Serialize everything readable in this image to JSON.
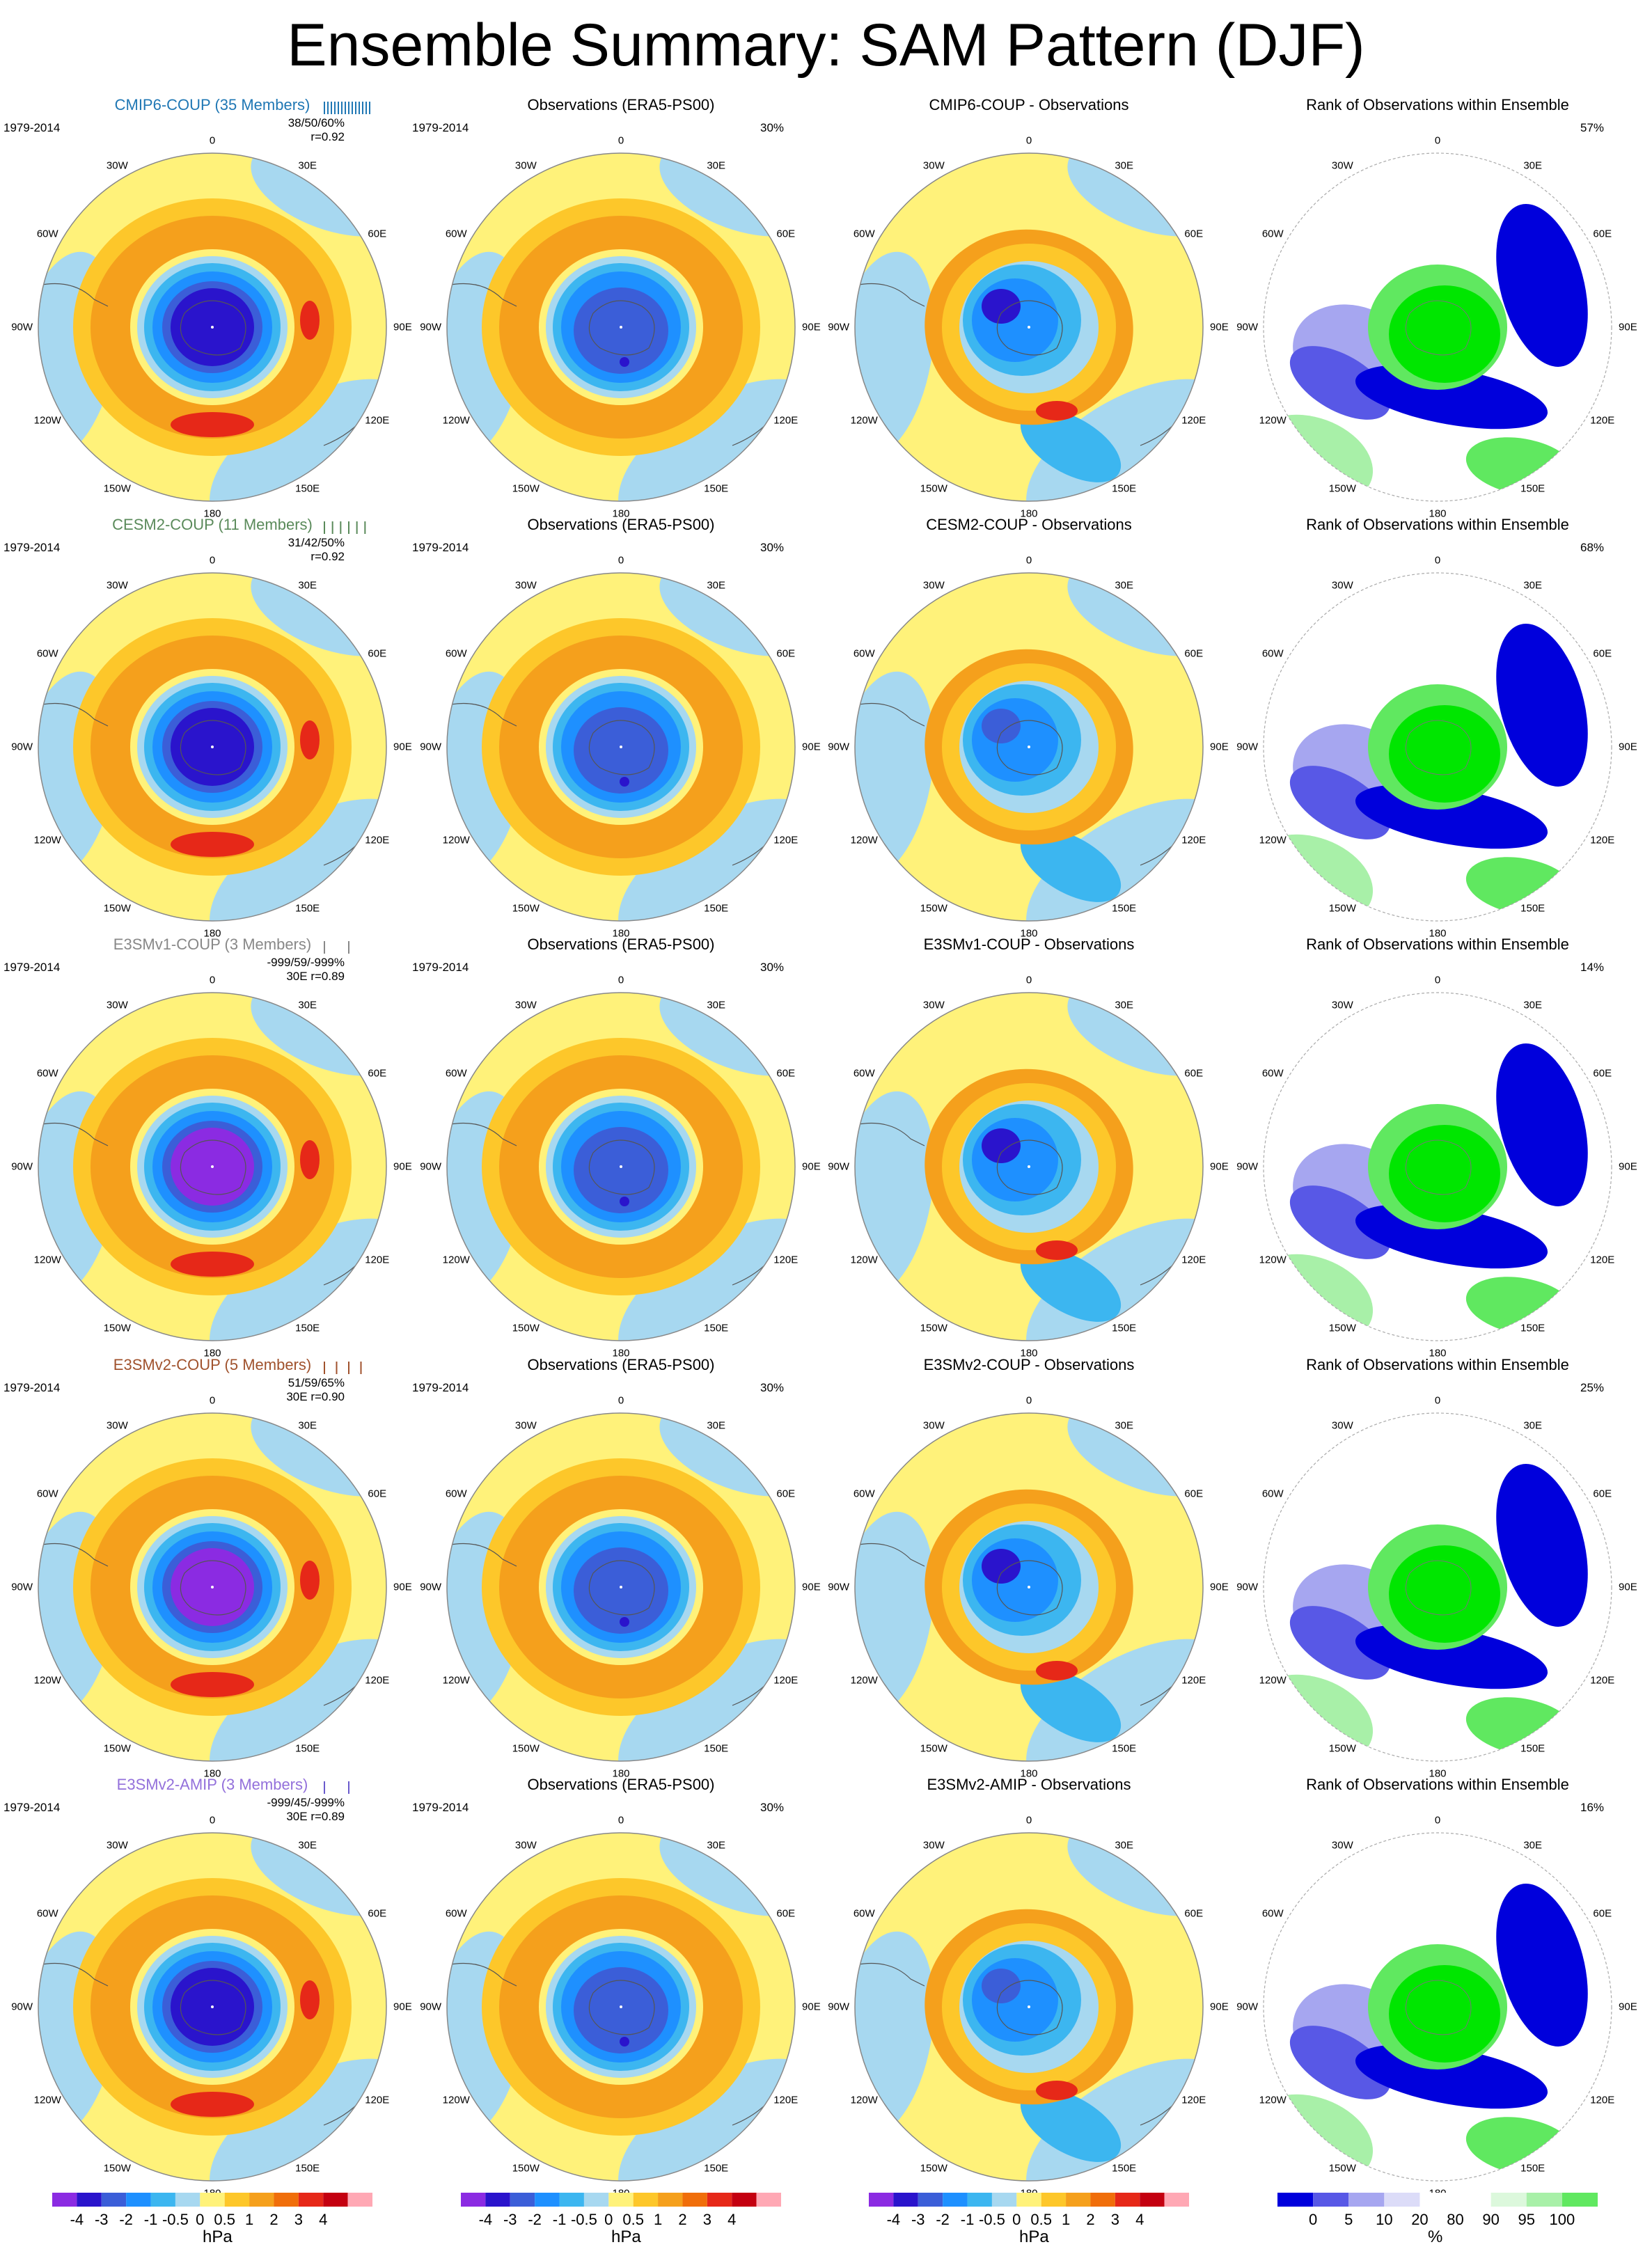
{
  "title": "Ensemble Summary: SAM Pattern (DJF)",
  "palettes": {
    "hpa": [
      "#8b2be2",
      "#2a14cc",
      "#3b5ed8",
      "#1e90ff",
      "#3cb6f0",
      "#a7d8f0",
      "#fff27a",
      "#fdc72a",
      "#f5a01c",
      "#f06e0a",
      "#e62818",
      "#c40010",
      "#ffa8b4"
    ],
    "rank": [
      "#0000dc",
      "#5858e6",
      "#a6a6f0",
      "#dcdcf8",
      "#ffffff",
      "#ffffff",
      "#dcf8dc",
      "#a8f0a8",
      "#60e860",
      "#00e600"
    ]
  },
  "common": {
    "period": "1979-2014",
    "obs_title": "Observations (ERA5-PS00)",
    "obs_pct": "30%",
    "rank_title": "Rank of Observations within Ensemble"
  },
  "lon_labels": [
    "0",
    "30E",
    "60E",
    "90E",
    "120E",
    "150E",
    "180",
    "150W",
    "120W",
    "90W",
    "60W",
    "30W"
  ],
  "rows": [
    {
      "id": "cmip6",
      "model_title": "CMIP6-COUP (35 Members)",
      "title_color": "#1f77b4",
      "stats_line1": "38/50/60%",
      "stats_line2": "r=0.92",
      "diff_title": "CMIP6-COUP - Observations",
      "rank_pct": "57%",
      "bar_color": "#1f77b4",
      "bars": 14,
      "inner_color": "#2a14cc",
      "core_color": "#2a14cc"
    },
    {
      "id": "cesm2",
      "model_title": "CESM2-COUP (11 Members)",
      "title_color": "#5a8a5a",
      "stats_line1": "31/42/50%",
      "stats_line2": "r=0.92",
      "diff_title": "CESM2-COUP - Observations",
      "rank_pct": "68%",
      "bar_color": "#5a8a5a",
      "bars": 6,
      "inner_color": "#2a14cc",
      "core_color": "#3b5ed8"
    },
    {
      "id": "e3smv1",
      "model_title": "E3SMv1-COUP (3 Members)",
      "title_color": "#888888",
      "stats_line1": "-999/59/-999%",
      "stats_line2": "30E  r=0.89",
      "diff_title": "E3SMv1-COUP - Observations",
      "rank_pct": "14%",
      "bar_color": "#888888",
      "bars": 2,
      "inner_color": "#8b2be2",
      "core_color": "#2a14cc"
    },
    {
      "id": "e3smv2",
      "model_title": "E3SMv2-COUP (5 Members)",
      "title_color": "#a0522d",
      "stats_line1": "51/59/65%",
      "stats_line2": "30E  r=0.90",
      "diff_title": "E3SMv2-COUP - Observations",
      "rank_pct": "25%",
      "bar_color": "#a0522d",
      "bars": 4,
      "inner_color": "#8b2be2",
      "core_color": "#2a14cc"
    },
    {
      "id": "e3smv2amip",
      "model_title": "E3SMv2-AMIP (3 Members)",
      "title_color": "#9370db",
      "stats_line1": "-999/45/-999%",
      "stats_line2": "30E  r=0.89",
      "diff_title": "E3SMv2-AMIP - Observations",
      "rank_pct": "16%",
      "bar_color": "#6a5acd",
      "bars": 2,
      "inner_color": "#2a14cc",
      "core_color": "#3b5ed8"
    }
  ],
  "colorbar_hpa": {
    "unit": "hPa",
    "ticks": [
      "-4",
      "-3",
      "-2",
      "-1",
      "-0.5",
      "0",
      "0.5",
      "1",
      "2",
      "3",
      "4"
    ]
  },
  "colorbar_rank": {
    "unit": "%",
    "ticks": [
      "0",
      "5",
      "10",
      "20",
      "80",
      "90",
      "95",
      "100"
    ]
  }
}
